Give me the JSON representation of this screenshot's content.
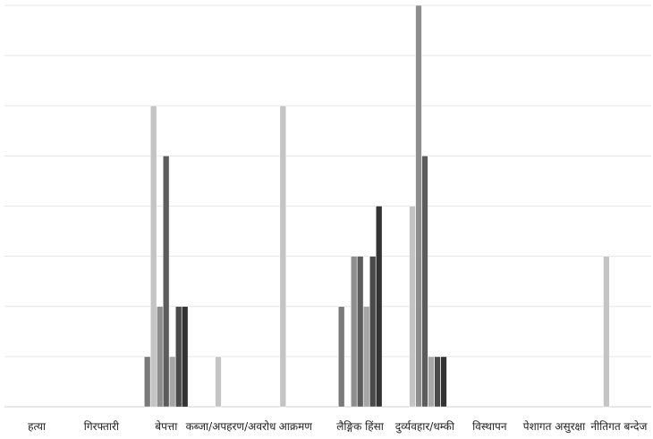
{
  "chart_data": {
    "type": "bar",
    "title": "",
    "xlabel": "",
    "ylabel": "",
    "ylim": [
      0,
      8
    ],
    "grid": true,
    "legend": "none",
    "categories": [
      "हत्या",
      "गिरफ्तारी",
      "बेपत्ता",
      "कब्जा/अपहरण/अवरोध",
      "आक्रमण",
      "लैङ्गिक हिंसा",
      "दुर्व्यवहार/धम्की",
      "विस्थापन",
      "पेशागत असुरक्षा",
      "नीतिगत बन्देज"
    ],
    "series": [
      {
        "color": "#7a7a7a",
        "values": [
          0,
          0,
          1,
          0,
          0,
          2,
          0,
          0,
          0,
          0
        ]
      },
      {
        "color": "#c4c4c4",
        "values": [
          0,
          0,
          6,
          1,
          6,
          0,
          4,
          0,
          0,
          3
        ]
      },
      {
        "color": "#8e8e8e",
        "values": [
          0,
          0,
          2,
          0,
          0,
          3,
          8,
          0,
          0,
          0
        ]
      },
      {
        "color": "#5c5c5c",
        "values": [
          0,
          0,
          5,
          0,
          0,
          3,
          5,
          0,
          0,
          0
        ]
      },
      {
        "color": "#a6a6a6",
        "values": [
          0,
          0,
          1,
          0,
          0,
          2,
          1,
          0,
          0,
          0
        ]
      },
      {
        "color": "#4a4a4a",
        "values": [
          0,
          0,
          2,
          0,
          0,
          3,
          1,
          0,
          0,
          0
        ]
      },
      {
        "color": "#333333",
        "values": [
          0,
          0,
          2,
          0,
          0,
          4,
          1,
          0,
          0,
          0
        ]
      }
    ]
  }
}
